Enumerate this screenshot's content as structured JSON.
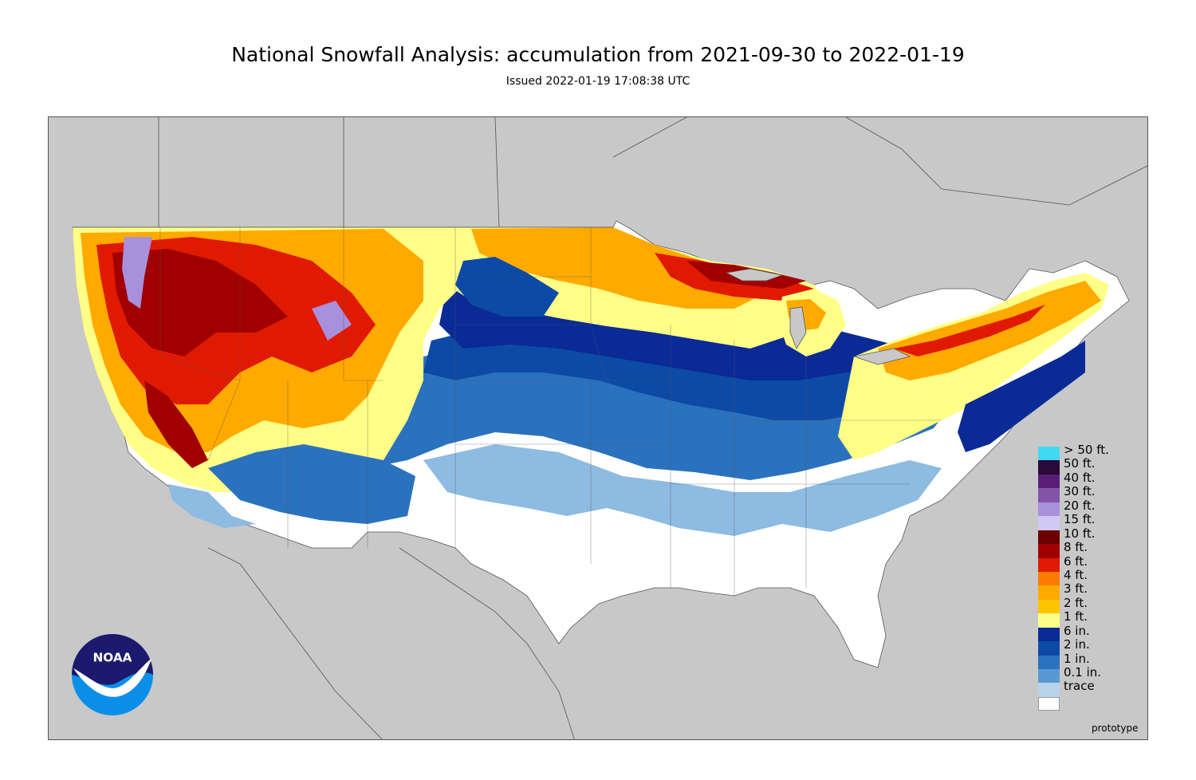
{
  "header": {
    "title": "National Snowfall Analysis: accumulation from 2021-09-30 to 2022-01-19",
    "issued": "Issued 2022-01-19 17:08:38 UTC"
  },
  "colors": {
    "background_land_other": "#c8c8c8",
    "ocean": "#c8c8c8",
    "border_lines": "#555555"
  },
  "legend": {
    "items": [
      {
        "label": "> 50 ft.",
        "color": "#40d8f2"
      },
      {
        "label": "50 ft.",
        "color": "#2a0a3a"
      },
      {
        "label": "40 ft.",
        "color": "#5a1e78"
      },
      {
        "label": "30 ft.",
        "color": "#8055a8"
      },
      {
        "label": "20 ft.",
        "color": "#a890dd"
      },
      {
        "label": "15 ft.",
        "color": "#d0c8f5"
      },
      {
        "label": "10 ft.",
        "color": "#6a0000"
      },
      {
        "label": "8 ft.",
        "color": "#a00000"
      },
      {
        "label": "6 ft.",
        "color": "#e01a00"
      },
      {
        "label": "4 ft.",
        "color": "#ff7a00"
      },
      {
        "label": "3 ft.",
        "color": "#ffaa00"
      },
      {
        "label": "2 ft.",
        "color": "#ffc400"
      },
      {
        "label": "1 ft.",
        "color": "#ffff88"
      },
      {
        "label": "6 in.",
        "color": "#0a2a96"
      },
      {
        "label": "2 in.",
        "color": "#0c4aa6"
      },
      {
        "label": "1 in.",
        "color": "#2a72bd"
      },
      {
        "label": "0.1 in.",
        "color": "#5a98d4"
      },
      {
        "label": "trace",
        "color": "#b9d3ea"
      },
      {
        "label": "",
        "color": "#ffffff"
      }
    ]
  },
  "footer": {
    "prototype_label": "prototype"
  },
  "logo": {
    "text": "NOAA",
    "top_color": "#1b1a6e",
    "bottom_color": "#0a8fe8"
  }
}
